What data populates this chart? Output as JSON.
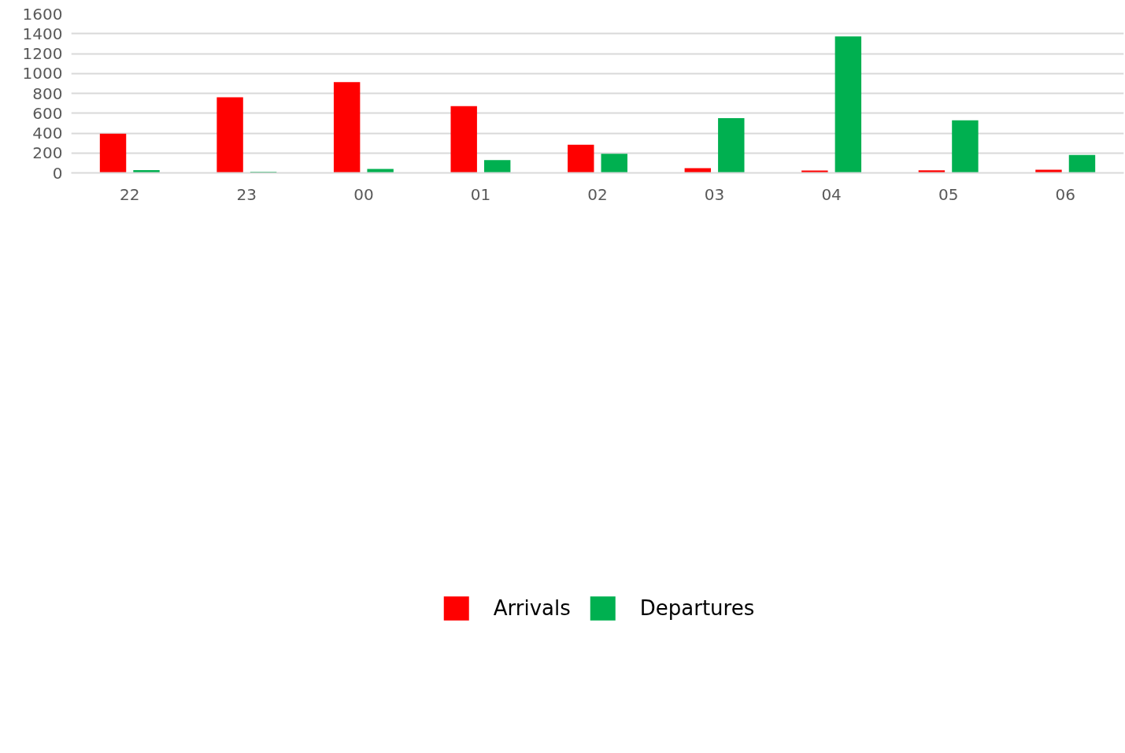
{
  "chart_data": {
    "type": "bar",
    "categories": [
      "22",
      "23",
      "00",
      "01",
      "02",
      "03",
      "04",
      "05",
      "06"
    ],
    "series": [
      {
        "name": "Arrivals",
        "color": "#ff0000",
        "values": [
          395,
          760,
          913,
          672,
          283,
          47,
          24,
          26,
          32
        ]
      },
      {
        "name": "Departures",
        "color": "#00b050",
        "values": [
          28,
          11,
          39,
          129,
          193,
          550,
          1372,
          528,
          180
        ]
      }
    ],
    "ylim": [
      0,
      1600
    ],
    "yticks": [
      0,
      200,
      400,
      600,
      800,
      1000,
      1200,
      1400,
      1600
    ],
    "grid": "y",
    "legend": "bottom"
  }
}
